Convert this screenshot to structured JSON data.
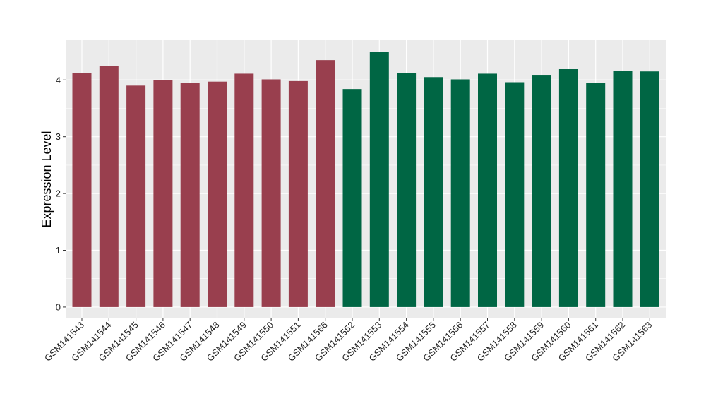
{
  "chart_data": {
    "type": "bar",
    "title": "",
    "xlabel": "",
    "ylabel": "Expression Level",
    "ylim": [
      -0.2,
      4.7
    ],
    "yticks": [
      0,
      1,
      2,
      3,
      4
    ],
    "grid": true,
    "legend": "none",
    "categories": [
      "GSM141543",
      "GSM141544",
      "GSM141545",
      "GSM141546",
      "GSM141547",
      "GSM141548",
      "GSM141549",
      "GSM141550",
      "GSM141551",
      "GSM141566",
      "GSM141552",
      "GSM141553",
      "GSM141554",
      "GSM141555",
      "GSM141556",
      "GSM141557",
      "GSM141558",
      "GSM141559",
      "GSM141560",
      "GSM141561",
      "GSM141562",
      "GSM141563"
    ],
    "values": [
      4.12,
      4.24,
      3.9,
      4.0,
      3.95,
      3.97,
      4.11,
      4.01,
      3.98,
      4.35,
      3.84,
      4.49,
      4.12,
      4.05,
      4.01,
      4.11,
      3.96,
      4.09,
      4.19,
      3.95,
      4.16,
      4.15
    ],
    "groups": [
      0,
      0,
      0,
      0,
      0,
      0,
      0,
      0,
      0,
      0,
      1,
      1,
      1,
      1,
      1,
      1,
      1,
      1,
      1,
      1,
      1,
      1
    ],
    "colors": {
      "group_0": "#993f4e",
      "group_1": "#006644",
      "panel_background": "#ebebeb",
      "grid": "#ffffff",
      "text": "#000000"
    }
  }
}
